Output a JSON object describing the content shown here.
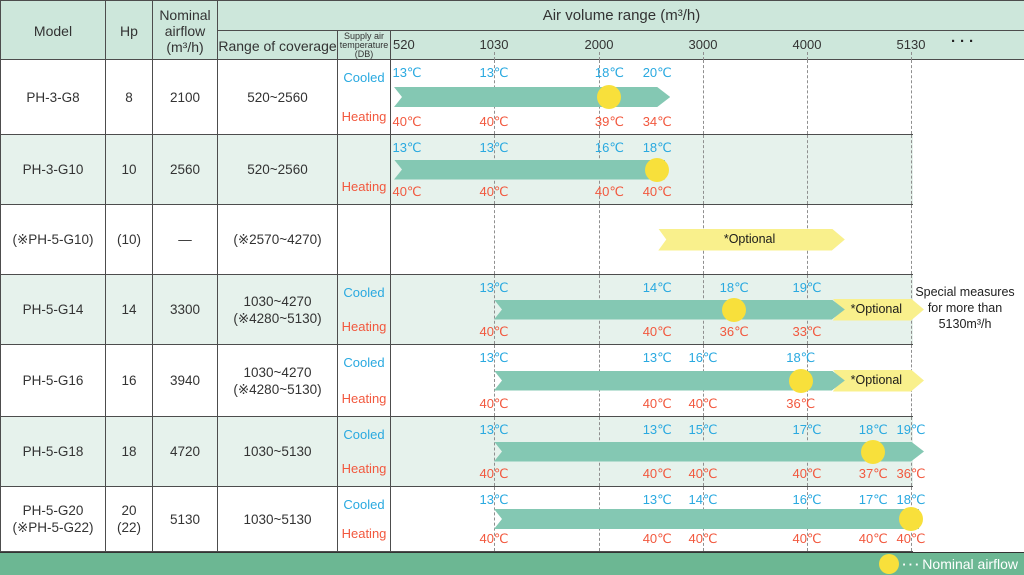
{
  "columns": {
    "model": "Model",
    "hp": "Hp",
    "nominal": [
      "Nominal",
      "airflow",
      "(m³/h)"
    ],
    "coverage": "Range of coverage",
    "supply": [
      "Supply air",
      "temperature",
      "(DB)"
    ],
    "air_volume": "Air volume range (m³/h)"
  },
  "chart_data": {
    "type": "range-bar-table",
    "axis_label": "Air volume range (m³/h)",
    "x_ticks": [
      520,
      1030,
      2000,
      3000,
      4000,
      5130
    ],
    "x_tick_labels": [
      "520",
      "1030",
      "2000",
      "3000",
      "4000",
      "5130"
    ],
    "more_label": "···",
    "rows": [
      {
        "model": [
          "PH-3-G8"
        ],
        "hp": [
          "8"
        ],
        "nominal": [
          "2100"
        ],
        "coverage": [
          "520~2560"
        ],
        "cooled_label": "Cooled",
        "heating_label": "Heating",
        "shaded": false,
        "bars": [
          {
            "kind": "main",
            "from": 520,
            "to": 2560,
            "arrow": true
          }
        ],
        "nominal_dot_at": 2100,
        "cooled_temps": [
          {
            "at": 520,
            "t": "13℃"
          },
          {
            "at": 1030,
            "t": "13℃"
          },
          {
            "at": 2100,
            "t": "18℃"
          },
          {
            "at": 2560,
            "t": "20℃"
          }
        ],
        "heating_temps": [
          {
            "at": 520,
            "t": "40℃"
          },
          {
            "at": 1030,
            "t": "40℃"
          },
          {
            "at": 2100,
            "t": "39℃"
          },
          {
            "at": 2560,
            "t": "34℃"
          }
        ]
      },
      {
        "model": [
          "PH-3-G10"
        ],
        "hp": [
          "10"
        ],
        "nominal": [
          "2560"
        ],
        "coverage": [
          "520~2560"
        ],
        "cooled_label": "",
        "heating_label": "Heating",
        "shaded": true,
        "bars": [
          {
            "kind": "main",
            "from": 520,
            "to": 2560,
            "arrow": false
          }
        ],
        "nominal_dot_at": 2560,
        "cooled_temps": [
          {
            "at": 520,
            "t": "13℃"
          },
          {
            "at": 1030,
            "t": "13℃"
          },
          {
            "at": 2100,
            "t": "16℃"
          },
          {
            "at": 2560,
            "t": "18℃"
          }
        ],
        "heating_temps": [
          {
            "at": 520,
            "t": "40℃"
          },
          {
            "at": 1030,
            "t": "40℃"
          },
          {
            "at": 2100,
            "t": "40℃"
          },
          {
            "at": 2560,
            "t": "40℃"
          }
        ]
      },
      {
        "model": [
          "(※PH-5-G10)"
        ],
        "hp": [
          "(10)"
        ],
        "nominal": [
          "—"
        ],
        "coverage": [
          "(※2570~4270)"
        ],
        "cooled_label": "",
        "heating_label": "",
        "shaded": false,
        "bars": [
          {
            "kind": "optional",
            "from": 2570,
            "to": 4270,
            "arrow": true,
            "label": "*Optional"
          }
        ],
        "nominal_dot_at": null,
        "cooled_temps": [],
        "heating_temps": []
      },
      {
        "model": [
          "PH-5-G14"
        ],
        "hp": [
          "14"
        ],
        "nominal": [
          "3300"
        ],
        "coverage": [
          "1030~4270",
          "(※4280~5130)"
        ],
        "cooled_label": "Cooled",
        "heating_label": "Heating",
        "shaded": true,
        "bars": [
          {
            "kind": "main",
            "from": 1030,
            "to": 4270,
            "arrow": true
          },
          {
            "kind": "optional",
            "from": 4280,
            "to": 5130,
            "arrow": true,
            "label": "*Optional"
          }
        ],
        "nominal_dot_at": 3300,
        "cooled_temps": [
          {
            "at": 1030,
            "t": "13℃"
          },
          {
            "at": 2560,
            "t": "14℃"
          },
          {
            "at": 3300,
            "t": "18℃"
          },
          {
            "at": 4000,
            "t": "19℃"
          }
        ],
        "heating_temps": [
          {
            "at": 1030,
            "t": "40℃"
          },
          {
            "at": 2560,
            "t": "40℃"
          },
          {
            "at": 3300,
            "t": "36℃"
          },
          {
            "at": 4000,
            "t": "33℃"
          }
        ]
      },
      {
        "model": [
          "PH-5-G16"
        ],
        "hp": [
          "16"
        ],
        "nominal": [
          "3940"
        ],
        "coverage": [
          "1030~4270",
          "(※4280~5130)"
        ],
        "cooled_label": "Cooled",
        "heating_label": "Heating",
        "shaded": false,
        "bars": [
          {
            "kind": "main",
            "from": 1030,
            "to": 4270,
            "arrow": true
          },
          {
            "kind": "optional",
            "from": 4280,
            "to": 5130,
            "arrow": true,
            "label": "*Optional"
          }
        ],
        "nominal_dot_at": 3940,
        "cooled_temps": [
          {
            "at": 1030,
            "t": "13℃"
          },
          {
            "at": 2560,
            "t": "13℃"
          },
          {
            "at": 3000,
            "t": "16℃"
          },
          {
            "at": 3940,
            "t": "18℃"
          }
        ],
        "heating_temps": [
          {
            "at": 1030,
            "t": "40℃"
          },
          {
            "at": 2560,
            "t": "40℃"
          },
          {
            "at": 3000,
            "t": "40℃"
          },
          {
            "at": 3940,
            "t": "36℃"
          }
        ]
      },
      {
        "model": [
          "PH-5-G18"
        ],
        "hp": [
          "18"
        ],
        "nominal": [
          "4720"
        ],
        "coverage": [
          "1030~5130"
        ],
        "cooled_label": "Cooled",
        "heating_label": "Heating",
        "shaded": true,
        "bars": [
          {
            "kind": "main",
            "from": 1030,
            "to": 5130,
            "arrow": true
          }
        ],
        "nominal_dot_at": 4720,
        "cooled_temps": [
          {
            "at": 1030,
            "t": "13℃"
          },
          {
            "at": 2560,
            "t": "13℃"
          },
          {
            "at": 3000,
            "t": "15℃"
          },
          {
            "at": 4000,
            "t": "17℃"
          },
          {
            "at": 4720,
            "t": "18℃"
          },
          {
            "at": 5130,
            "t": "19℃"
          }
        ],
        "heating_temps": [
          {
            "at": 1030,
            "t": "40℃"
          },
          {
            "at": 2560,
            "t": "40℃"
          },
          {
            "at": 3000,
            "t": "40℃"
          },
          {
            "at": 4000,
            "t": "40℃"
          },
          {
            "at": 4720,
            "t": "37℃"
          },
          {
            "at": 5130,
            "t": "36℃"
          }
        ]
      },
      {
        "model": [
          "PH-5-G20",
          "(※PH-5-G22)"
        ],
        "hp": [
          "20",
          "(22)"
        ],
        "nominal": [
          "5130"
        ],
        "coverage": [
          "1030~5130"
        ],
        "cooled_label": "Cooled",
        "heating_label": "Heating",
        "shaded": false,
        "bars": [
          {
            "kind": "main",
            "from": 1030,
            "to": 5130,
            "arrow": false
          }
        ],
        "nominal_dot_at": 5130,
        "cooled_temps": [
          {
            "at": 1030,
            "t": "13℃"
          },
          {
            "at": 2560,
            "t": "13℃"
          },
          {
            "at": 3000,
            "t": "14℃"
          },
          {
            "at": 4000,
            "t": "16℃"
          },
          {
            "at": 4720,
            "t": "17℃"
          },
          {
            "at": 5130,
            "t": "18℃"
          }
        ],
        "heating_temps": [
          {
            "at": 1030,
            "t": "40℃"
          },
          {
            "at": 2560,
            "t": "40℃"
          },
          {
            "at": 3000,
            "t": "40℃"
          },
          {
            "at": 4000,
            "t": "40℃"
          },
          {
            "at": 4720,
            "t": "40℃"
          },
          {
            "at": 5130,
            "t": "40℃"
          }
        ]
      }
    ]
  },
  "legend": {
    "dots": "···",
    "label": "Nominal airflow"
  },
  "note": {
    "lines": [
      "Special measures",
      "for more than",
      "5130m³/h"
    ]
  },
  "colors": {
    "header_bg": "#cde7db",
    "row_alt_bg": "#e6f2ec",
    "footer_bg": "#6cb793",
    "bar": "#84c8b3",
    "optional_bar": "#f9f08c",
    "dot": "#f8e03b",
    "cooled": "#29a9e0",
    "heating": "#f2583e"
  }
}
